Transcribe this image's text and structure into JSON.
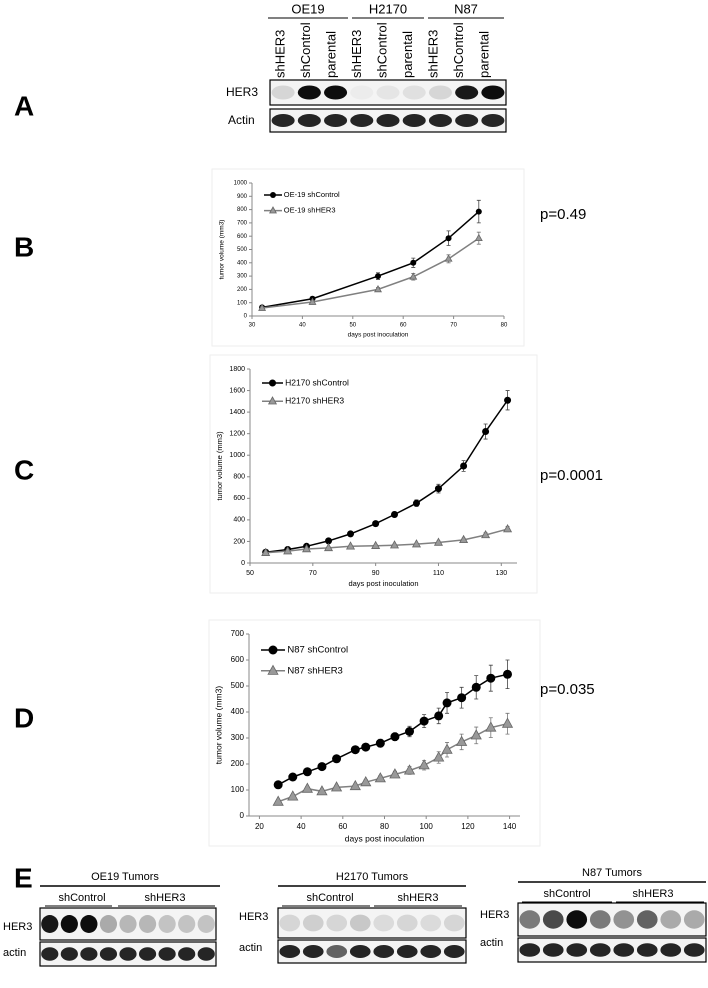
{
  "panel_labels": [
    "A",
    "B",
    "C",
    "D",
    "E"
  ],
  "blot_a": {
    "groups": [
      {
        "name": "OE19",
        "lanes": [
          "shHER3",
          "shControl",
          "parental"
        ]
      },
      {
        "name": "H2170",
        "lanes": [
          "shHER3",
          "shControl",
          "parental"
        ]
      },
      {
        "name": "N87",
        "lanes": [
          "shHER3",
          "shControl",
          "parental"
        ]
      }
    ],
    "rows": [
      "HER3",
      "Actin"
    ]
  },
  "blot_e": [
    {
      "title": "OE19 Tumors",
      "subgroups": [
        "shControl",
        "shHER3"
      ],
      "rows": [
        "HER3",
        "actin"
      ]
    },
    {
      "title": "H2170 Tumors",
      "subgroups": [
        "shControl",
        "shHER3"
      ],
      "rows": [
        "HER3",
        "actin"
      ]
    },
    {
      "title": "N87 Tumors",
      "subgroups": [
        "shControl",
        "shHER3"
      ],
      "rows": [
        "HER3",
        "actin"
      ]
    }
  ],
  "chart_data": [
    {
      "type": "line",
      "x_label": "days post inoculation",
      "y_label": "tumor volume (mm3)",
      "annotation": "p=0.49",
      "legend": "upper left",
      "x": [
        32,
        42,
        55,
        62,
        69,
        75
      ],
      "xlim": [
        30,
        80
      ],
      "xticks": [
        30,
        40,
        50,
        60,
        70,
        80
      ],
      "ylim": [
        0,
        1000
      ],
      "yticks": [
        0,
        100,
        200,
        300,
        400,
        500,
        600,
        700,
        800,
        900,
        1000
      ],
      "series": [
        {
          "name": "OE-19 shControl",
          "color": "#000000",
          "marker": "circle",
          "values": [
            65,
            130,
            300,
            400,
            585,
            785
          ],
          "errors": [
            10,
            15,
            25,
            35,
            55,
            85
          ]
        },
        {
          "name": "OE-19 shHER3",
          "color": "#808080",
          "marker": "triangle",
          "values": [
            60,
            105,
            200,
            295,
            430,
            585
          ],
          "errors": [
            8,
            12,
            15,
            25,
            30,
            45
          ]
        }
      ]
    },
    {
      "type": "line",
      "x_label": "days post inoculation",
      "y_label": "tumor volume (mm3)",
      "annotation": "p=0.0001",
      "legend": "upper left",
      "x": [
        55,
        62,
        68,
        75,
        82,
        90,
        96,
        103,
        110,
        118,
        125,
        132
      ],
      "xlim": [
        50,
        135
      ],
      "xticks": [
        50,
        70,
        90,
        110,
        130
      ],
      "ylim": [
        0,
        1800
      ],
      "yticks": [
        0,
        200,
        400,
        600,
        800,
        1000,
        1200,
        1400,
        1600,
        1800
      ],
      "series": [
        {
          "name": "H2170 shControl",
          "color": "#000000",
          "marker": "circle",
          "values": [
            100,
            125,
            155,
            205,
            270,
            365,
            450,
            555,
            690,
            900,
            1220,
            1510
          ],
          "errors": [
            10,
            10,
            12,
            15,
            15,
            20,
            25,
            30,
            40,
            50,
            70,
            90
          ]
        },
        {
          "name": "H2170 shHER3",
          "color": "#808080",
          "marker": "triangle",
          "values": [
            95,
            110,
            130,
            140,
            155,
            160,
            165,
            175,
            190,
            215,
            260,
            315
          ],
          "errors": [
            8,
            8,
            10,
            10,
            10,
            10,
            10,
            12,
            15,
            15,
            20,
            25
          ]
        }
      ]
    },
    {
      "type": "line",
      "x_label": "days post inoculation",
      "y_label": "tumor volume (mm3)",
      "annotation": "p=0.035",
      "legend": "upper left",
      "x": [
        29,
        36,
        43,
        50,
        57,
        66,
        71,
        78,
        85,
        92,
        99,
        106,
        110,
        117,
        124,
        131,
        139
      ],
      "xlim": [
        15,
        145
      ],
      "xticks": [
        20,
        40,
        60,
        80,
        100,
        120,
        140
      ],
      "ylim": [
        0,
        700
      ],
      "yticks": [
        0,
        100,
        200,
        300,
        400,
        500,
        600,
        700
      ],
      "series": [
        {
          "name": "N87 shControl",
          "color": "#000000",
          "marker": "circle",
          "values": [
            120,
            150,
            170,
            190,
            220,
            255,
            265,
            280,
            305,
            325,
            365,
            385,
            435,
            455,
            495,
            530,
            545
          ],
          "errors": [
            8,
            8,
            8,
            10,
            10,
            12,
            12,
            15,
            15,
            20,
            25,
            30,
            40,
            40,
            45,
            50,
            55
          ]
        },
        {
          "name": "N87 shHER3",
          "color": "#808080",
          "marker": "triangle",
          "values": [
            55,
            75,
            105,
            95,
            110,
            115,
            130,
            145,
            160,
            175,
            195,
            225,
            255,
            285,
            310,
            340,
            355
          ],
          "errors": [
            5,
            5,
            8,
            8,
            8,
            8,
            10,
            10,
            12,
            15,
            18,
            22,
            28,
            30,
            32,
            38,
            40
          ]
        }
      ]
    }
  ]
}
